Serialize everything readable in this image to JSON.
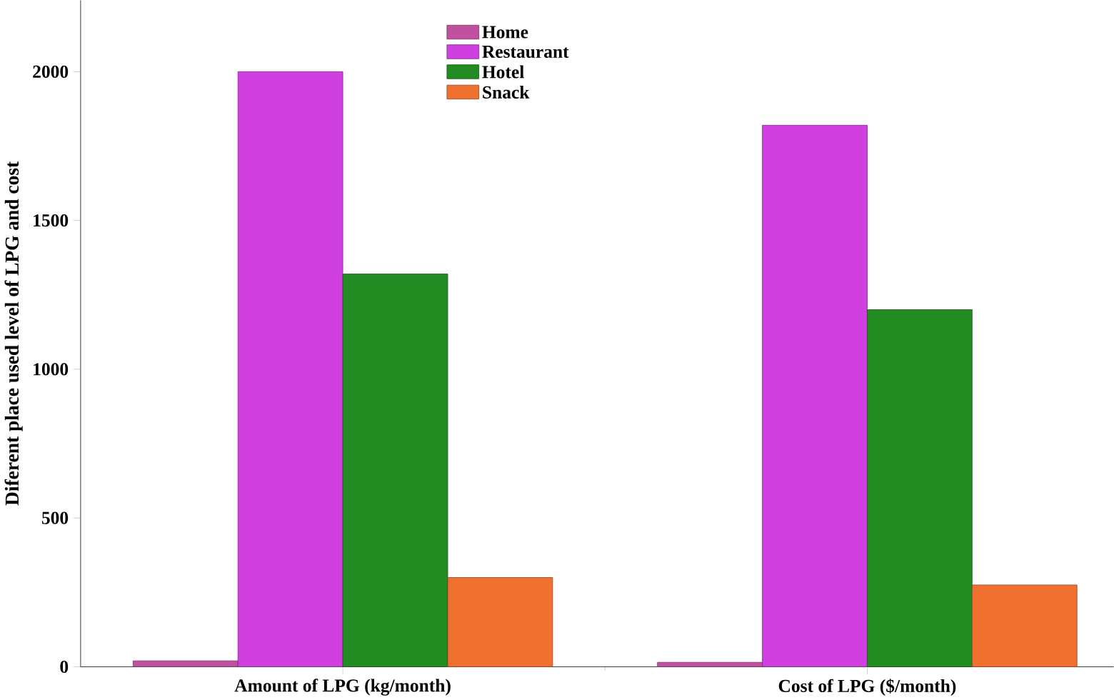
{
  "chart_data": {
    "type": "bar",
    "ylabel": "Diferent place used level of LPG and cost",
    "categories": [
      "Amount of LPG (kg/month)",
      "Cost of LPG ($/month)"
    ],
    "series": [
      {
        "name": "Home",
        "color": "#c050a0",
        "values": [
          20,
          15
        ]
      },
      {
        "name": "Restaurant",
        "color": "#d040e0",
        "values": [
          2000,
          1820
        ]
      },
      {
        "name": "Hotel",
        "color": "#228b22",
        "values": [
          1320,
          1200
        ]
      },
      {
        "name": "Snack",
        "color": "#f07030",
        "values": [
          300,
          275
        ]
      }
    ],
    "ylim": [
      0,
      2240
    ],
    "yticks": [
      0,
      500,
      1000,
      1500,
      2000
    ],
    "legend": "top",
    "grid": false
  }
}
